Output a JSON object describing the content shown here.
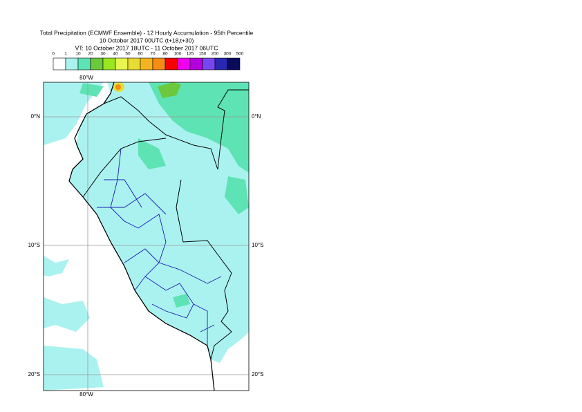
{
  "title": [
    "Total Precipitation (ECMWF Ensemble) - 12 Hourly Accumulation - 95th Percentile",
    "10 October 2017 00UTC (t+18,t+30)",
    "VT: 10 October 2017 18UTC - 11 October 2017 06UTC"
  ],
  "legend": {
    "ticks": [
      0,
      1,
      10,
      20,
      30,
      40,
      50,
      60,
      70,
      80,
      100,
      125,
      150,
      200,
      300,
      500
    ],
    "colors": [
      "#ffffff",
      "#aaf2f0",
      "#5ee3b4",
      "#6cc83c",
      "#9ae61e",
      "#e8f550",
      "#e6dc32",
      "#f5b41e",
      "#f58c14",
      "#f50000",
      "#f000f0",
      "#b400dc",
      "#7846f0",
      "#2828b4",
      "#0a0a5a"
    ]
  },
  "lat_labels": [
    "0°N",
    "10°S",
    "20°S"
  ],
  "lon_labels": [
    "80°W"
  ]
}
